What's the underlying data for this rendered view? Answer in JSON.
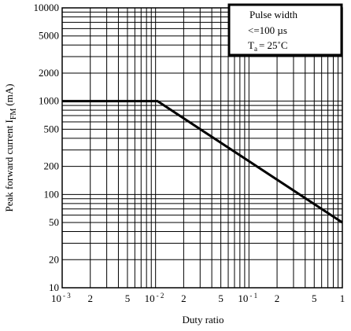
{
  "chart_data": {
    "type": "line",
    "xlabel": "Duty ratio",
    "ylabel": "Peak forward current I",
    "ylabel_sub": "FM",
    "ylabel_unit": "(mA)",
    "x_scale": "log",
    "y_scale": "log",
    "xlim": [
      0.001,
      1
    ],
    "ylim": [
      10,
      10000
    ],
    "grid": true,
    "x_ticks": [
      {
        "value": 0.001,
        "label": "10",
        "sup": "- 3"
      },
      {
        "value": 0.002,
        "label": "2"
      },
      {
        "value": 0.005,
        "label": "5"
      },
      {
        "value": 0.01,
        "label": "10",
        "sup": "- 2"
      },
      {
        "value": 0.02,
        "label": "2"
      },
      {
        "value": 0.05,
        "label": "5"
      },
      {
        "value": 0.1,
        "label": "10",
        "sup": "- 1"
      },
      {
        "value": 0.2,
        "label": "2"
      },
      {
        "value": 0.5,
        "label": "5"
      },
      {
        "value": 1,
        "label": "1"
      }
    ],
    "y_ticks": [
      {
        "value": 10,
        "label": "10"
      },
      {
        "value": 20,
        "label": "20"
      },
      {
        "value": 50,
        "label": "50"
      },
      {
        "value": 100,
        "label": "100"
      },
      {
        "value": 200,
        "label": "200"
      },
      {
        "value": 500,
        "label": "500"
      },
      {
        "value": 1000,
        "label": "1000"
      },
      {
        "value": 2000,
        "label": "2000"
      },
      {
        "value": 5000,
        "label": "5000"
      },
      {
        "value": 10000,
        "label": "10000"
      }
    ],
    "series": [
      {
        "x": [
          0.001,
          0.0105,
          1
        ],
        "y": [
          1000,
          1000,
          50
        ]
      }
    ],
    "annotation": {
      "line1": "Pulse width",
      "line2": "<=100 µs",
      "line3_main": "T",
      "line3_sub": "a",
      "line3_rest": "= 25˚C",
      "placement": "top-right"
    }
  }
}
